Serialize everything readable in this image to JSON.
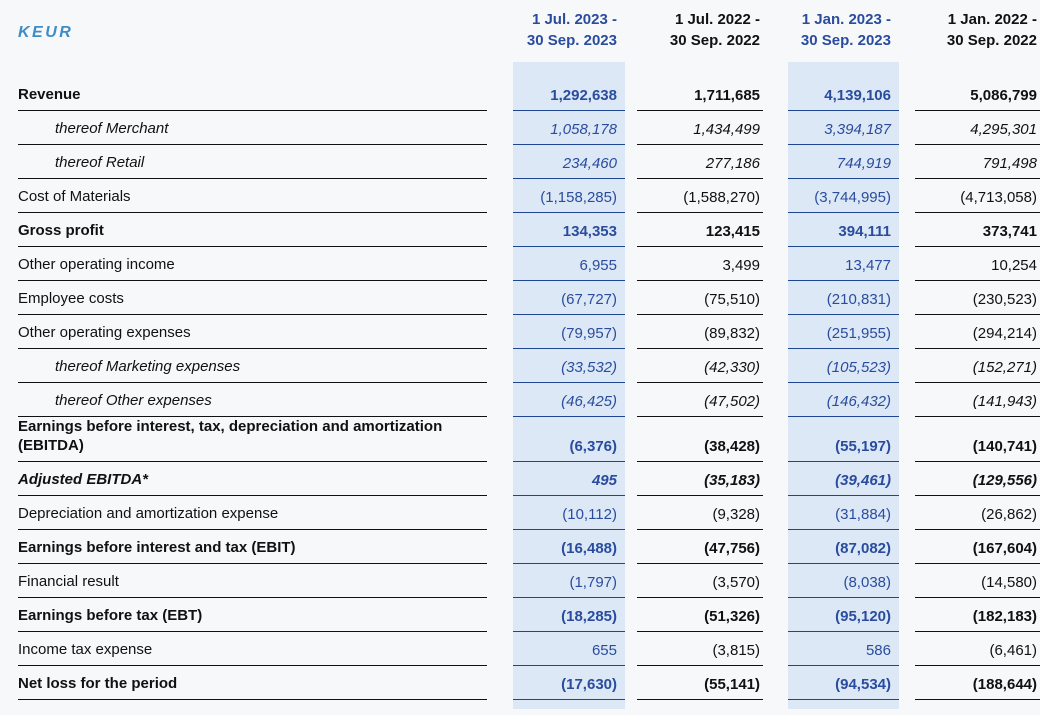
{
  "unit_label": "KEUR",
  "colors": {
    "accent_text": "#2a4c9e",
    "accent_border": "#1f4690",
    "band_bg": "#dce8f5",
    "page_bg": "#f6f8fa",
    "ink": "#111111",
    "unit_blue": "#3e8dc6"
  },
  "columns": [
    {
      "line1": "1 Jul. 2023 -",
      "line2": "30 Sep. 2023",
      "highlighted": true
    },
    {
      "line1": "1 Jul. 2022 -",
      "line2": "30 Sep. 2022",
      "highlighted": false
    },
    {
      "line1": "1 Jan. 2023 -",
      "line2": "30 Sep. 2023",
      "highlighted": true
    },
    {
      "line1": "1 Jan. 2022 -",
      "line2": "30 Sep. 2022",
      "highlighted": false
    }
  ],
  "rows": [
    {
      "label": "Revenue",
      "style": "bold",
      "values": [
        "1,292,638",
        "1,711,685",
        "4,139,106",
        "5,086,799"
      ]
    },
    {
      "label": "thereof Merchant",
      "style": "thereof",
      "values": [
        "1,058,178",
        "1,434,499",
        "3,394,187",
        "4,295,301"
      ]
    },
    {
      "label": "thereof Retail",
      "style": "thereof",
      "values": [
        "234,460",
        "277,186",
        "744,919",
        "791,498"
      ]
    },
    {
      "label": "Cost of Materials",
      "style": "normal",
      "values": [
        "(1,158,285)",
        "(1,588,270)",
        "(3,744,995)",
        "(4,713,058)"
      ]
    },
    {
      "label": "Gross profit",
      "style": "bold",
      "values": [
        "134,353",
        "123,415",
        "394,111",
        "373,741"
      ]
    },
    {
      "label": "Other operating income",
      "style": "normal",
      "values": [
        "6,955",
        "3,499",
        "13,477",
        "10,254"
      ]
    },
    {
      "label": "Employee costs",
      "style": "normal",
      "values": [
        "(67,727)",
        "(75,510)",
        "(210,831)",
        "(230,523)"
      ]
    },
    {
      "label": "Other operating expenses",
      "style": "normal",
      "values": [
        "(79,957)",
        "(89,832)",
        "(251,955)",
        "(294,214)"
      ]
    },
    {
      "label": "thereof Marketing expenses",
      "style": "thereof",
      "values": [
        "(33,532)",
        "(42,330)",
        "(105,523)",
        "(152,271)"
      ]
    },
    {
      "label": "thereof Other expenses",
      "style": "thereof",
      "values": [
        "(46,425)",
        "(47,502)",
        "(146,432)",
        "(141,943)"
      ]
    },
    {
      "label": "Earnings before interest, tax, depreciation and amortization (EBITDA)",
      "style": "bold",
      "values": [
        "(6,376)",
        "(38,428)",
        "(55,197)",
        "(140,741)"
      ]
    },
    {
      "label": "Adjusted EBITDA*",
      "style": "bold-italic",
      "values": [
        "495",
        "(35,183)",
        "(39,461)",
        "(129,556)"
      ]
    },
    {
      "label": "Depreciation and amortization expense",
      "style": "normal",
      "values": [
        "(10,112)",
        "(9,328)",
        "(31,884)",
        "(26,862)"
      ]
    },
    {
      "label": "Earnings before interest and tax (EBIT)",
      "style": "bold",
      "values": [
        "(16,488)",
        "(47,756)",
        "(87,082)",
        "(167,604)"
      ]
    },
    {
      "label": "Financial result",
      "style": "normal",
      "values": [
        "(1,797)",
        "(3,570)",
        "(8,038)",
        "(14,580)"
      ]
    },
    {
      "label": "Earnings before tax (EBT)",
      "style": "bold",
      "values": [
        "(18,285)",
        "(51,326)",
        "(95,120)",
        "(182,183)"
      ]
    },
    {
      "label": "Income tax expense",
      "style": "normal",
      "values": [
        "655",
        "(3,815)",
        "586",
        "(6,461)"
      ]
    },
    {
      "label": "Net loss for the period",
      "style": "bold",
      "values": [
        "(17,630)",
        "(55,141)",
        "(94,534)",
        "(188,644)"
      ]
    }
  ]
}
